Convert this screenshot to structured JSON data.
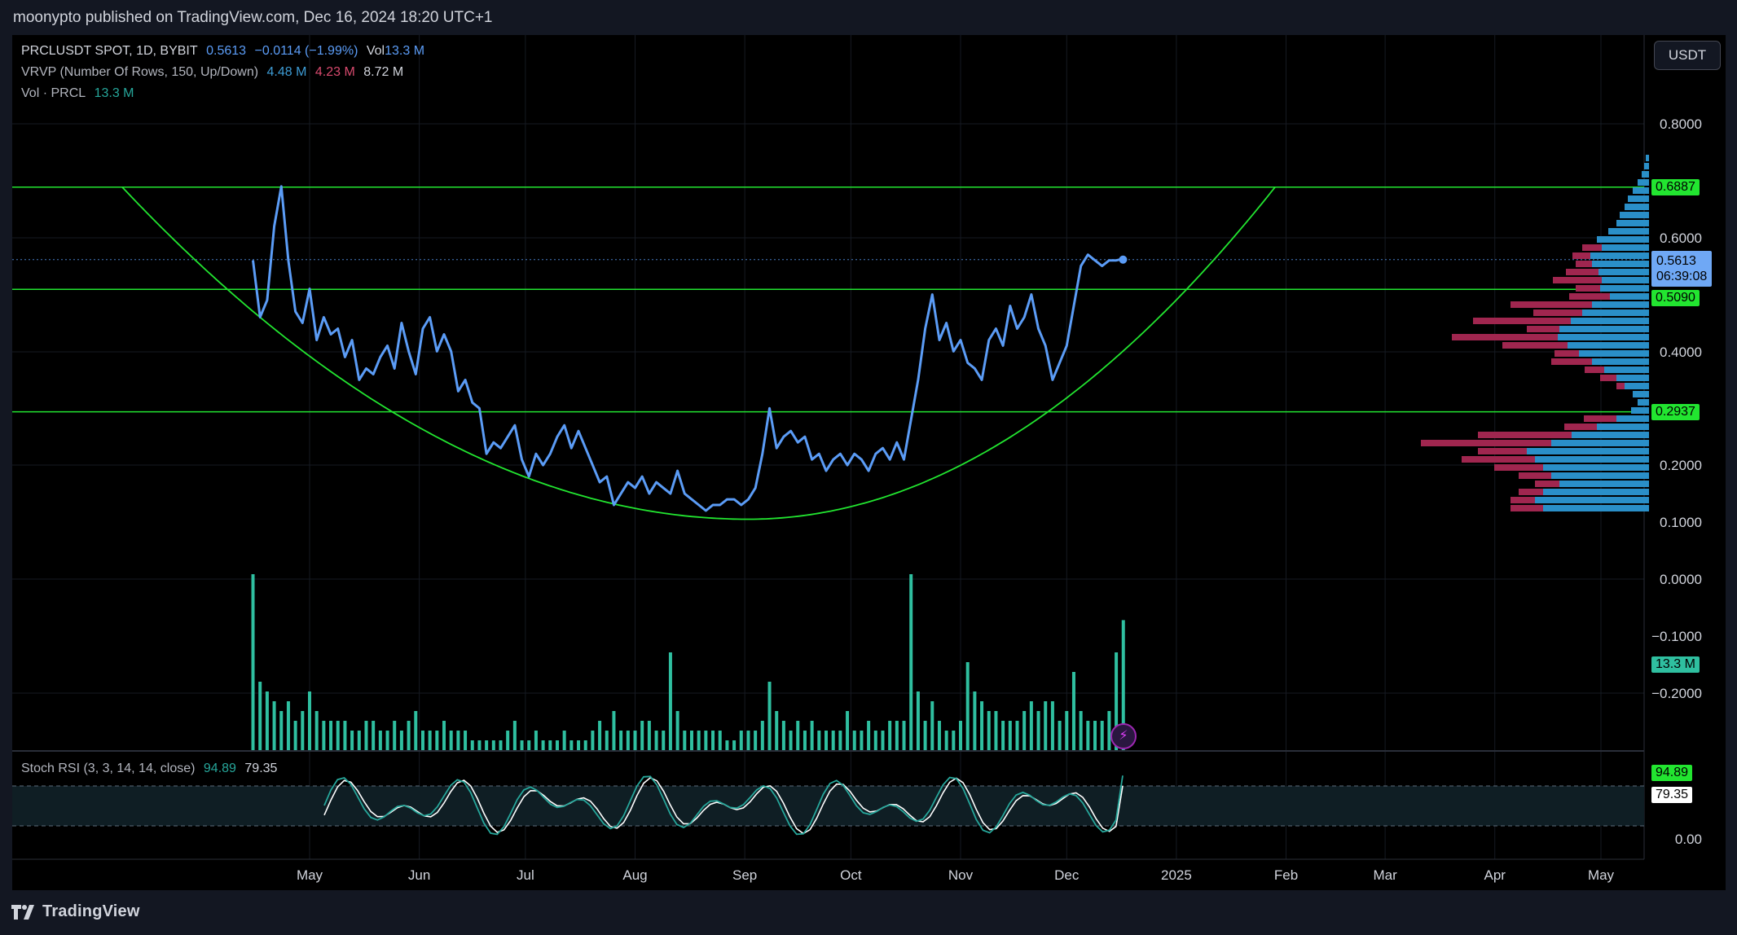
{
  "header": {
    "published": "moonypto published on TradingView.com, Dec 16, 2024 18:20 UTC+1"
  },
  "legend": {
    "symbol": "PRCLUSDT SPOT, 1D, BYBIT",
    "last": "0.5613",
    "change": "−0.0114 (−1.99%)",
    "vol_label": "Vol",
    "vol_value": "13.3 M",
    "vrvp_label": "VRVP (Number Of Rows, 150, Up/Down)",
    "vrvp_up": "4.48 M",
    "vrvp_down": "4.23 M",
    "vrvp_total": "8.72 M",
    "vol_study": "Vol · PRCL",
    "vol_study_value": "13.3 M",
    "rsi_label": "Stoch RSI (3, 3, 14, 14, close)",
    "rsi_k": "94.89",
    "rsi_d": "79.35"
  },
  "currency_button": "USDT",
  "price_tags": {
    "resistance": "0.6887",
    "last_price": "0.5613",
    "countdown": "06:39:08",
    "mid": "0.5090",
    "support": "0.2937",
    "volume": "13.3 M"
  },
  "footer": {
    "brand": "TradingView"
  },
  "colors": {
    "price_line": "#5b9cf6",
    "horizontal_levels": "#22e530",
    "cup_arc": "#22e530",
    "volume_bars": "#2fbfa0",
    "vrvp_up": "#2a8fc8",
    "vrvp_down": "#a0264f",
    "stoch_k": "#26a69a",
    "stoch_d": "#ffffff",
    "background": "#000000"
  },
  "chart_data": {
    "type": "line",
    "symbol": "PRCLUSDT",
    "timeframe": "1D",
    "x_axis_labels": [
      "May",
      "Jun",
      "Jul",
      "Aug",
      "Sep",
      "Oct",
      "Nov",
      "Dec",
      "2025",
      "Feb",
      "Mar",
      "Apr",
      "May"
    ],
    "y_axis_labels": [
      "0.8000",
      "0.6000",
      "0.4000",
      "0.2000",
      "0.1000",
      "0.0000",
      "−0.1000",
      "−0.2000"
    ],
    "ylim": [
      -0.23,
      0.86
    ],
    "horizontal_levels": [
      0.6887,
      0.509,
      0.2937
    ],
    "last_price": 0.5613,
    "series": [
      {
        "x": [
          "2024-04-15",
          "2024-04-17",
          "2024-04-19",
          "2024-04-21",
          "2024-04-23",
          "2024-04-25",
          "2024-04-27",
          "2024-04-29",
          "2024-05-01",
          "2024-05-03",
          "2024-05-05",
          "2024-05-07",
          "2024-05-09",
          "2024-05-11",
          "2024-05-13",
          "2024-05-15",
          "2024-05-17",
          "2024-05-19",
          "2024-05-21",
          "2024-05-23",
          "2024-05-25",
          "2024-05-27",
          "2024-05-29",
          "2024-05-31",
          "2024-06-02",
          "2024-06-04",
          "2024-06-06",
          "2024-06-08",
          "2024-06-10",
          "2024-06-12",
          "2024-06-14",
          "2024-06-16",
          "2024-06-18",
          "2024-06-20",
          "2024-06-22",
          "2024-06-24",
          "2024-06-26",
          "2024-06-28",
          "2024-06-30",
          "2024-07-02",
          "2024-07-04",
          "2024-07-06",
          "2024-07-08",
          "2024-07-10",
          "2024-07-12",
          "2024-07-14",
          "2024-07-16",
          "2024-07-18",
          "2024-07-20",
          "2024-07-22",
          "2024-07-24",
          "2024-07-26",
          "2024-07-28",
          "2024-07-30",
          "2024-08-01",
          "2024-08-03",
          "2024-08-05",
          "2024-08-07",
          "2024-08-09",
          "2024-08-11",
          "2024-08-13",
          "2024-08-15",
          "2024-08-17",
          "2024-08-19",
          "2024-08-21",
          "2024-08-23",
          "2024-08-25",
          "2024-08-27",
          "2024-08-29",
          "2024-08-31",
          "2024-09-02",
          "2024-09-04",
          "2024-09-06",
          "2024-09-08",
          "2024-09-10",
          "2024-09-12",
          "2024-09-14",
          "2024-09-16",
          "2024-09-18",
          "2024-09-20",
          "2024-09-22",
          "2024-09-24",
          "2024-09-26",
          "2024-09-28",
          "2024-09-30",
          "2024-10-02",
          "2024-10-04",
          "2024-10-06",
          "2024-10-08",
          "2024-10-10",
          "2024-10-12",
          "2024-10-14",
          "2024-10-16",
          "2024-10-18",
          "2024-10-20",
          "2024-10-22",
          "2024-10-24",
          "2024-10-26",
          "2024-10-28",
          "2024-10-30",
          "2024-11-01",
          "2024-11-03",
          "2024-11-05",
          "2024-11-07",
          "2024-11-09",
          "2024-11-11",
          "2024-11-13",
          "2024-11-15",
          "2024-11-17",
          "2024-11-19",
          "2024-11-21",
          "2024-11-23",
          "2024-11-25",
          "2024-11-27",
          "2024-11-29",
          "2024-12-01",
          "2024-12-03",
          "2024-12-05",
          "2024-12-07",
          "2024-12-09",
          "2024-12-11",
          "2024-12-13",
          "2024-12-15",
          "2024-12-16"
        ],
        "y": [
          0.56,
          0.46,
          0.49,
          0.62,
          0.69,
          0.56,
          0.47,
          0.45,
          0.51,
          0.42,
          0.46,
          0.43,
          0.44,
          0.39,
          0.42,
          0.35,
          0.37,
          0.36,
          0.39,
          0.41,
          0.37,
          0.45,
          0.4,
          0.36,
          0.44,
          0.46,
          0.4,
          0.43,
          0.4,
          0.33,
          0.35,
          0.31,
          0.3,
          0.22,
          0.24,
          0.23,
          0.25,
          0.27,
          0.21,
          0.18,
          0.22,
          0.2,
          0.22,
          0.25,
          0.27,
          0.23,
          0.26,
          0.23,
          0.2,
          0.17,
          0.18,
          0.13,
          0.15,
          0.17,
          0.16,
          0.18,
          0.15,
          0.17,
          0.16,
          0.15,
          0.19,
          0.15,
          0.14,
          0.13,
          0.12,
          0.13,
          0.13,
          0.14,
          0.14,
          0.13,
          0.14,
          0.16,
          0.22,
          0.3,
          0.23,
          0.25,
          0.26,
          0.24,
          0.25,
          0.21,
          0.22,
          0.19,
          0.21,
          0.22,
          0.2,
          0.22,
          0.21,
          0.19,
          0.22,
          0.23,
          0.21,
          0.24,
          0.21,
          0.28,
          0.35,
          0.44,
          0.5,
          0.42,
          0.45,
          0.4,
          0.42,
          0.38,
          0.37,
          0.35,
          0.42,
          0.44,
          0.41,
          0.48,
          0.44,
          0.46,
          0.5,
          0.44,
          0.41,
          0.35,
          0.38,
          0.41,
          0.48,
          0.55,
          0.57,
          0.56,
          0.55,
          0.56,
          0.56,
          0.5613
        ]
      }
    ],
    "cup_arc": {
      "rim_price": 0.6887,
      "bottom_price": 0.105,
      "bottom_date": "2024-09-02"
    },
    "volume_m": [
      18,
      7,
      6,
      5,
      4,
      5,
      3,
      4,
      6,
      4,
      3,
      3,
      3,
      3,
      2,
      2,
      3,
      3,
      2,
      2,
      3,
      2,
      3,
      4,
      2,
      2,
      2,
      3,
      2,
      2,
      2,
      1,
      1,
      1,
      1,
      1,
      2,
      3,
      1,
      1,
      2,
      1,
      1,
      1,
      2,
      1,
      1,
      1,
      2,
      3,
      2,
      4,
      2,
      2,
      2,
      3,
      3,
      2,
      2,
      10,
      4,
      2,
      2,
      2,
      2,
      2,
      2,
      1,
      1,
      2,
      2,
      2,
      3,
      7,
      4,
      3,
      2,
      3,
      2,
      3,
      2,
      2,
      2,
      2,
      4,
      2,
      2,
      3,
      2,
      2,
      3,
      3,
      3,
      18,
      6,
      3,
      5,
      3,
      2,
      2,
      3,
      9,
      6,
      5,
      4,
      4,
      3,
      3,
      3,
      4,
      5,
      4,
      5,
      5,
      3,
      4,
      8,
      4,
      3,
      3,
      3,
      4,
      10,
      13.3
    ],
    "stoch_rsi": {
      "k_last": 94.89,
      "d_last": 79.35,
      "levels": [
        80,
        20
      ],
      "y_axis_labels": [
        "0.00"
      ]
    },
    "vrvp": {
      "up_total": "4.48 M",
      "down_total": "4.23 M",
      "total": "8.72 M",
      "rows": 150
    }
  }
}
